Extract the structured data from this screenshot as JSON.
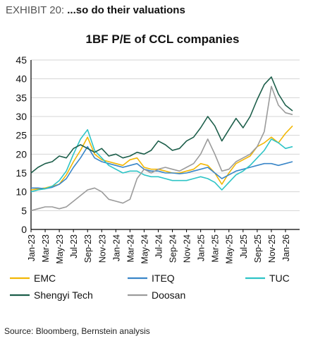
{
  "exhibit": {
    "label": "EXHIBIT 20:",
    "headline": "...so do their valuations"
  },
  "source": "Source: Bloomberg, Bernstein analysis",
  "chart_data": {
    "type": "line",
    "title": "1BF P/E of CCL companies",
    "xlabel": "",
    "ylabel": "",
    "ylim": [
      0,
      45
    ],
    "yticks": [
      0,
      5,
      10,
      15,
      20,
      25,
      30,
      35,
      40,
      45
    ],
    "xlim": [
      "Jan-23",
      "Mar-26"
    ],
    "x_tick_labels": [
      "Jan-23",
      "Mar-23",
      "May-23",
      "Jul-23",
      "Sep-23",
      "Nov-23",
      "Jan-24",
      "Mar-24",
      "May-24",
      "Jul-24",
      "Sep-24",
      "Nov-24",
      "Jan-25",
      "Mar-25",
      "May-25",
      "Jul-25",
      "Sep-25",
      "Nov-25",
      "Jan-26"
    ],
    "grid": "horizontal",
    "legend_position": "bottom",
    "series": [
      {
        "name": "EMC",
        "color": "#f2b705",
        "x": [
          "Jan-23",
          "Feb-23",
          "Mar-23",
          "Apr-23",
          "May-23",
          "Jun-23",
          "Jul-23",
          "Aug-23",
          "Sep-23",
          "Oct-23",
          "Nov-23",
          "Dec-23",
          "Jan-24",
          "Feb-24",
          "Mar-24",
          "Apr-24",
          "May-24",
          "Jun-24",
          "Jul-24",
          "Aug-24",
          "Sep-24",
          "Oct-24",
          "Nov-24",
          "Dec-24",
          "Jan-25",
          "Feb-25",
          "Mar-25",
          "Apr-25",
          "May-25",
          "Jun-25",
          "Jul-25",
          "Aug-25",
          "Sep-25",
          "Oct-25",
          "Nov-25",
          "Dec-25",
          "Jan-26",
          "Feb-26"
        ],
        "y": [
          10.5,
          10.8,
          11.0,
          11.5,
          12.0,
          14.5,
          18.0,
          21.0,
          24.5,
          20.0,
          18.5,
          18.0,
          17.5,
          17.0,
          18.5,
          19.0,
          16.5,
          16.0,
          16.0,
          15.5,
          15.0,
          15.0,
          15.5,
          16.0,
          17.5,
          17.0,
          15.0,
          12.0,
          15.0,
          17.5,
          18.5,
          19.5,
          22.0,
          23.0,
          24.5,
          23.0,
          25.5,
          27.5
        ]
      },
      {
        "name": "ITEQ",
        "color": "#3a86c8",
        "x": [
          "Jan-23",
          "Feb-23",
          "Mar-23",
          "Apr-23",
          "May-23",
          "Jun-23",
          "Jul-23",
          "Aug-23",
          "Sep-23",
          "Oct-23",
          "Nov-23",
          "Dec-23",
          "Jan-24",
          "Feb-24",
          "Mar-24",
          "Apr-24",
          "May-24",
          "Jun-24",
          "Jul-24",
          "Aug-24",
          "Sep-24",
          "Oct-24",
          "Nov-24",
          "Dec-24",
          "Jan-25",
          "Feb-25",
          "Mar-25",
          "Apr-25",
          "May-25",
          "Jun-25",
          "Jul-25",
          "Aug-25",
          "Sep-25",
          "Oct-25",
          "Nov-25",
          "Dec-25",
          "Jan-26",
          "Feb-26"
        ],
        "y": [
          11.0,
          11.0,
          10.8,
          11.2,
          12.0,
          13.5,
          16.5,
          19.0,
          22.0,
          19.0,
          18.0,
          17.5,
          17.0,
          16.5,
          17.0,
          17.5,
          16.0,
          15.5,
          15.5,
          15.0,
          15.0,
          14.8,
          15.0,
          15.5,
          16.0,
          16.5,
          15.0,
          13.5,
          14.5,
          15.5,
          16.0,
          16.5,
          17.0,
          17.5,
          17.5,
          17.0,
          17.5,
          18.0
        ]
      },
      {
        "name": "TUC",
        "color": "#2ec4c6",
        "x": [
          "Jan-23",
          "Feb-23",
          "Mar-23",
          "Apr-23",
          "May-23",
          "Jun-23",
          "Jul-23",
          "Aug-23",
          "Sep-23",
          "Oct-23",
          "Nov-23",
          "Dec-23",
          "Jan-24",
          "Feb-24",
          "Mar-24",
          "Apr-24",
          "May-24",
          "Jun-24",
          "Jul-24",
          "Aug-24",
          "Sep-24",
          "Oct-24",
          "Nov-24",
          "Dec-24",
          "Jan-25",
          "Feb-25",
          "Mar-25",
          "Apr-25",
          "May-25",
          "Jun-25",
          "Jul-25",
          "Aug-25",
          "Sep-25",
          "Oct-25",
          "Nov-25",
          "Dec-25",
          "Jan-26",
          "Feb-26"
        ],
        "y": [
          10.0,
          10.5,
          10.8,
          11.5,
          13.0,
          15.5,
          20.0,
          24.0,
          26.5,
          21.0,
          19.0,
          17.0,
          16.0,
          15.0,
          15.5,
          15.5,
          14.5,
          14.0,
          14.0,
          13.5,
          13.0,
          13.0,
          13.0,
          13.5,
          14.0,
          13.5,
          12.5,
          10.5,
          12.5,
          14.5,
          15.5,
          17.0,
          19.0,
          21.0,
          24.0,
          23.0,
          21.5,
          22.0
        ]
      },
      {
        "name": "Shengyi Tech",
        "color": "#1c5e4a",
        "x": [
          "Jan-23",
          "Feb-23",
          "Mar-23",
          "Apr-23",
          "May-23",
          "Jun-23",
          "Jul-23",
          "Aug-23",
          "Sep-23",
          "Oct-23",
          "Nov-23",
          "Dec-23",
          "Jan-24",
          "Feb-24",
          "Mar-24",
          "Apr-24",
          "May-24",
          "Jun-24",
          "Jul-24",
          "Aug-24",
          "Sep-24",
          "Oct-24",
          "Nov-24",
          "Dec-24",
          "Jan-25",
          "Feb-25",
          "Mar-25",
          "Apr-25",
          "May-25",
          "Jun-25",
          "Jul-25",
          "Aug-25",
          "Sep-25",
          "Oct-25",
          "Nov-25",
          "Dec-25",
          "Jan-26",
          "Feb-26"
        ],
        "y": [
          15.0,
          16.5,
          17.5,
          18.0,
          19.5,
          19.0,
          21.5,
          22.5,
          21.5,
          20.5,
          21.5,
          19.5,
          20.0,
          19.0,
          19.5,
          20.5,
          20.0,
          21.0,
          23.5,
          22.5,
          21.0,
          21.5,
          23.5,
          24.5,
          27.0,
          30.0,
          27.5,
          23.5,
          26.5,
          29.5,
          27.0,
          30.0,
          34.5,
          38.5,
          40.5,
          36.0,
          33.0,
          31.5
        ]
      },
      {
        "name": "Doosan",
        "color": "#9b9b9b",
        "x": [
          "Jan-23",
          "Feb-23",
          "Mar-23",
          "Apr-23",
          "May-23",
          "Jun-23",
          "Jul-23",
          "Aug-23",
          "Sep-23",
          "Oct-23",
          "Nov-23",
          "Dec-23",
          "Jan-24",
          "Feb-24",
          "Mar-24",
          "Apr-24",
          "May-24",
          "Jun-24",
          "Jul-24",
          "Aug-24",
          "Sep-24",
          "Oct-24",
          "Nov-24",
          "Dec-24",
          "Jan-25",
          "Feb-25",
          "Mar-25",
          "Apr-25",
          "May-25",
          "Jun-25",
          "Jul-25",
          "Aug-25",
          "Sep-25",
          "Oct-25",
          "Nov-25",
          "Dec-25",
          "Jan-26",
          "Feb-26"
        ],
        "y": [
          5.0,
          5.5,
          6.0,
          6.0,
          5.5,
          6.0,
          7.5,
          9.0,
          10.5,
          11.0,
          10.0,
          8.0,
          7.5,
          7.0,
          8.0,
          13.5,
          16.0,
          15.0,
          16.0,
          16.5,
          16.0,
          15.5,
          16.5,
          17.5,
          20.0,
          24.0,
          20.0,
          15.5,
          16.0,
          18.0,
          19.0,
          20.0,
          22.0,
          26.0,
          38.0,
          33.0,
          31.0,
          30.5
        ]
      }
    ]
  }
}
